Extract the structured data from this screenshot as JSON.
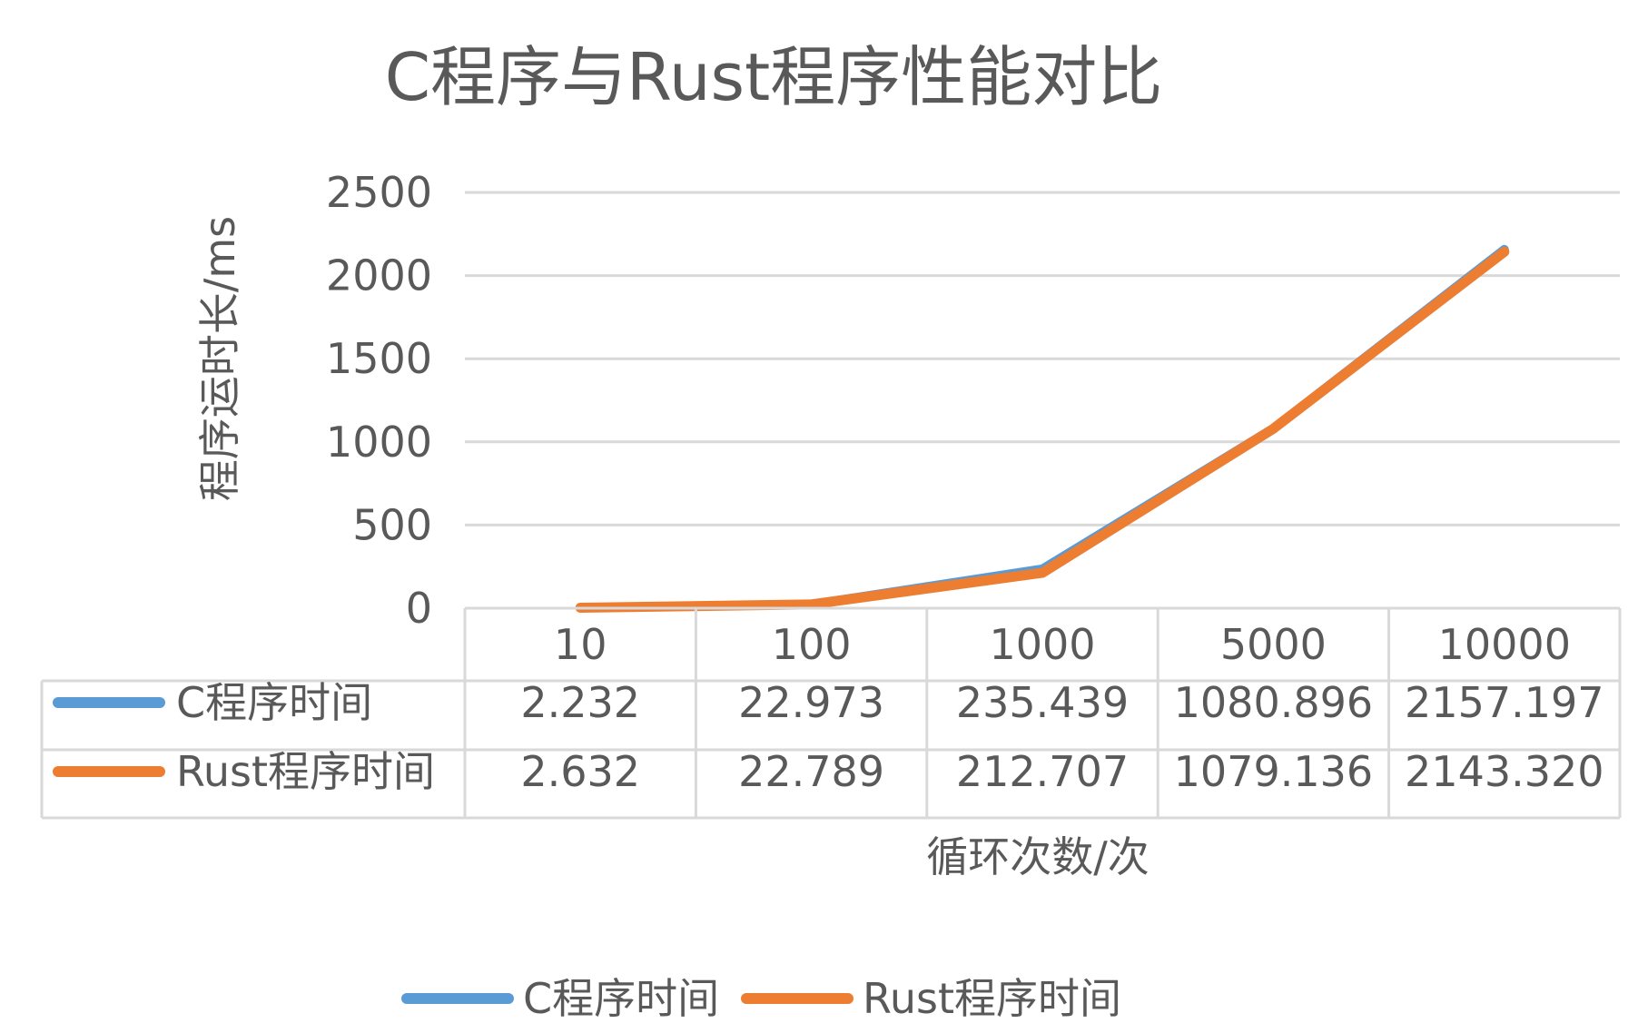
{
  "chart_data": {
    "type": "line",
    "title": "C程序与Rust程序性能对比",
    "xlabel": "循环次数/次",
    "ylabel": "程序运时长/ms",
    "categories": [
      "10",
      "100",
      "1000",
      "5000",
      "10000"
    ],
    "ylim": [
      0,
      2500
    ],
    "yticks": [
      "0",
      "500",
      "1000",
      "1500",
      "2000",
      "2500"
    ],
    "grid": true,
    "legend_position": "bottom",
    "data_table": true,
    "series": [
      {
        "name": "C程序时间",
        "color": "#5B9BD5",
        "values": [
          2.232,
          22.973,
          235.439,
          1080.896,
          2157.197
        ],
        "labels": [
          "2.232",
          "22.973",
          "235.439",
          "1080.896",
          "2157.197"
        ]
      },
      {
        "name": "Rust程序时间",
        "color": "#ED7D31",
        "values": [
          2.632,
          22.789,
          212.707,
          1079.136,
          2143.32
        ],
        "labels": [
          "2.632",
          "22.789",
          "212.707",
          "1079.136",
          "2143.320"
        ]
      }
    ]
  }
}
